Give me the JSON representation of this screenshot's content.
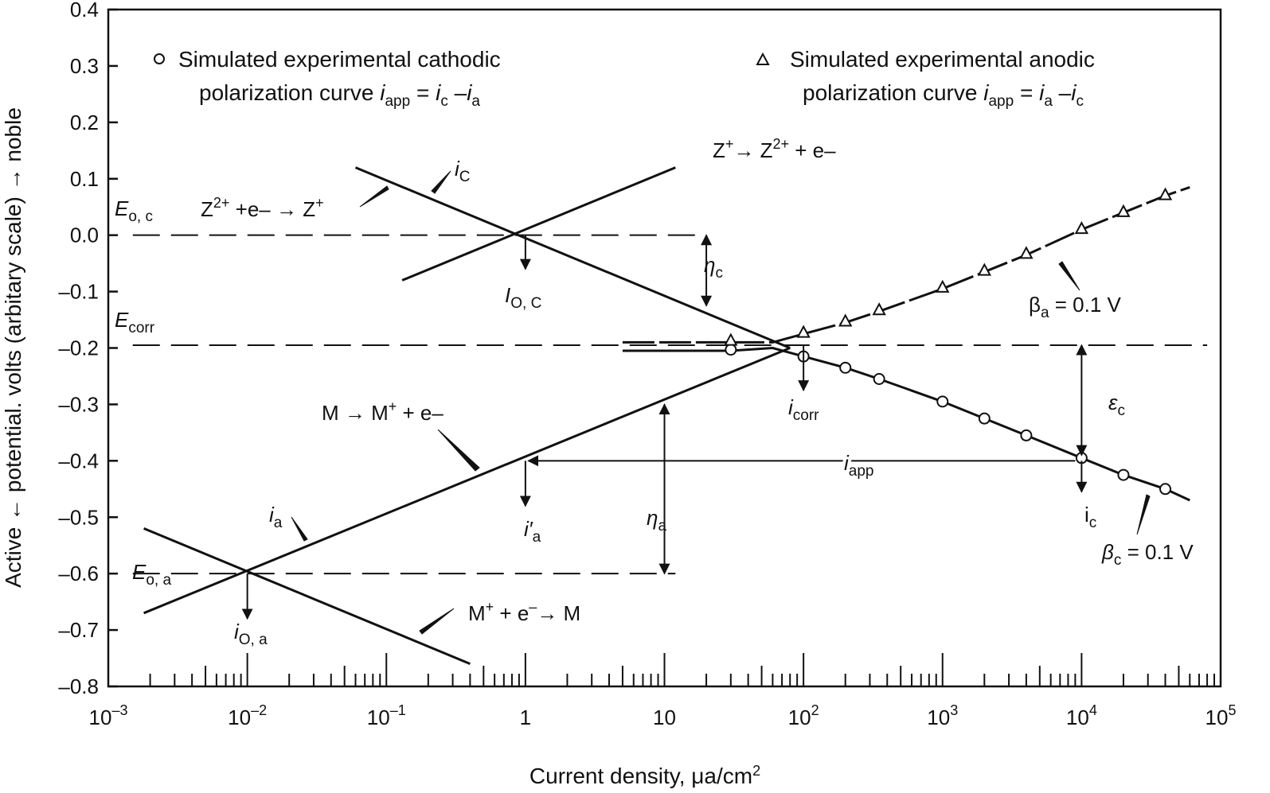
{
  "chart_data": {
    "type": "line",
    "x_scale": "log",
    "xlim": [
      0.001,
      100000
    ],
    "ylim": [
      -0.8,
      0.4
    ],
    "grid": false,
    "xlabel": "Current density, μa/cm",
    "xlabel_sup": "2",
    "ylabel": "Active ← potential. volts (arbitary scale) → noble",
    "y_ticks": [
      {
        "value": 0.4,
        "label": "0.4"
      },
      {
        "value": 0.3,
        "label": "0.3"
      },
      {
        "value": 0.2,
        "label": "0.2"
      },
      {
        "value": 0.1,
        "label": "0.1"
      },
      {
        "value": 0.0,
        "label": "0.0"
      },
      {
        "value": -0.1,
        "label": "–0.1"
      },
      {
        "value": -0.2,
        "label": "–0.2"
      },
      {
        "value": -0.3,
        "label": "–0.3"
      },
      {
        "value": -0.4,
        "label": "–0.4"
      },
      {
        "value": -0.5,
        "label": "–0.5"
      },
      {
        "value": -0.6,
        "label": "–0.6"
      },
      {
        "value": -0.7,
        "label": "–0.7"
      },
      {
        "value": -0.8,
        "label": "–0.8"
      }
    ],
    "x_ticks": [
      {
        "value": 0.001,
        "base": "10",
        "exp": "–3"
      },
      {
        "value": 0.01,
        "base": "10",
        "exp": "–2"
      },
      {
        "value": 0.1,
        "base": "10",
        "exp": "–1"
      },
      {
        "value": 1,
        "base": "1",
        "exp": ""
      },
      {
        "value": 10,
        "base": "10",
        "exp": ""
      },
      {
        "value": 100,
        "base": "10",
        "exp": "2"
      },
      {
        "value": 1000,
        "base": "10",
        "exp": "3"
      },
      {
        "value": 10000,
        "base": "10",
        "exp": "4"
      },
      {
        "value": 100000,
        "base": "10",
        "exp": "5"
      }
    ],
    "legend": [
      {
        "marker": "circle",
        "line1": "Simulated experimental cathodic",
        "line2_pre": "polarization curve ",
        "formula": "i_app = i_c – i_a"
      },
      {
        "marker": "triangle",
        "line1": "Simulated experimental anodic",
        "line2_pre": "polarization curve ",
        "formula": "i_app = i_a – i_c"
      }
    ],
    "series": [
      {
        "key": "z-oxidation",
        "points": [
          [
            0.13,
            -0.08
          ],
          [
            12,
            0.12
          ]
        ]
      },
      {
        "key": "z-reduction",
        "points": [
          [
            0.06,
            0.12
          ],
          [
            80,
            -0.2
          ]
        ]
      },
      {
        "key": "m-oxidation",
        "points": [
          [
            0.0018,
            -0.67
          ],
          [
            80,
            -0.2
          ]
        ]
      },
      {
        "key": "m-reduction",
        "points": [
          [
            0.0018,
            -0.52
          ],
          [
            0.4,
            -0.76
          ]
        ]
      },
      {
        "key": "cathodic-polarization",
        "marker": "circle",
        "points": [
          [
            5,
            -0.205
          ],
          [
            30,
            -0.205
          ],
          [
            60,
            -0.2
          ],
          [
            100,
            -0.215
          ],
          [
            200,
            -0.235
          ],
          [
            350,
            -0.255
          ],
          [
            1000,
            -0.295
          ],
          [
            2000,
            -0.325
          ],
          [
            4000,
            -0.355
          ],
          [
            10000,
            -0.395
          ],
          [
            20000,
            -0.425
          ],
          [
            40000,
            -0.45
          ],
          [
            60000,
            -0.47
          ]
        ]
      },
      {
        "key": "anodic-polarization",
        "marker": "triangle",
        "points": [
          [
            5,
            -0.19
          ],
          [
            30,
            -0.19
          ],
          [
            60,
            -0.19
          ],
          [
            100,
            -0.175
          ],
          [
            200,
            -0.155
          ],
          [
            350,
            -0.135
          ],
          [
            1000,
            -0.095
          ],
          [
            2000,
            -0.065
          ],
          [
            4000,
            -0.035
          ],
          [
            10000,
            0.01
          ],
          [
            20000,
            0.04
          ],
          [
            40000,
            0.07
          ],
          [
            60000,
            0.085
          ]
        ]
      }
    ],
    "cathodic_markers": [
      [
        30,
        -0.203
      ],
      [
        100,
        -0.215
      ],
      [
        200,
        -0.235
      ],
      [
        350,
        -0.255
      ],
      [
        1000,
        -0.295
      ],
      [
        2000,
        -0.325
      ],
      [
        4000,
        -0.355
      ],
      [
        10000,
        -0.395
      ],
      [
        20000,
        -0.425
      ],
      [
        40000,
        -0.45
      ]
    ],
    "anodic_markers": [
      [
        30,
        -0.186
      ],
      [
        100,
        -0.172
      ],
      [
        200,
        -0.152
      ],
      [
        350,
        -0.132
      ],
      [
        1000,
        -0.092
      ],
      [
        2000,
        -0.062
      ],
      [
        4000,
        -0.032
      ],
      [
        10000,
        0.012
      ],
      [
        20000,
        0.042
      ],
      [
        40000,
        0.072
      ]
    ],
    "reference_lines": [
      {
        "key": "E_oc",
        "y": 0.0,
        "x_range": [
          0.0015,
          20
        ]
      },
      {
        "key": "E_corr",
        "y": -0.195,
        "x_range": [
          0.0015,
          80000
        ]
      },
      {
        "key": "E_oa",
        "y": -0.6,
        "x_range": [
          0.0015,
          12
        ]
      }
    ],
    "annotations": {
      "e_oc": {
        "main": "E",
        "sub": "o, c"
      },
      "e_corr": {
        "main": "E",
        "sub": "corr"
      },
      "e_oa": {
        "main": "E",
        "sub": "o, a"
      },
      "z_red_reaction": "Z2+ + e– → Z+",
      "z_ox_reaction": "Z+ → Z2+ + e–",
      "m_ox_reaction": "M → M+ + e–",
      "m_red_reaction": "M+ + e– → M",
      "i_c_label": {
        "main": "i",
        "sub": "C"
      },
      "i_a_label": {
        "main": "i",
        "sub": "a"
      },
      "i_oc_label": {
        "main": "I",
        "sub": "O, C"
      },
      "i_oa_label": {
        "main": "i",
        "sub": "O, a"
      },
      "i_corr_label": {
        "main": "i",
        "sub": "corr"
      },
      "i_app_label": {
        "main": "i",
        "sub": "app"
      },
      "i_prime_a_label": {
        "main": "i′",
        "sub": "a"
      },
      "i_c_right_label": {
        "main": "i",
        "sub": "c"
      },
      "eta_c": {
        "main": "η",
        "sub": "c"
      },
      "eta_a": {
        "main": "η",
        "sub": "a"
      },
      "eps_c": {
        "main": "ε",
        "sub": "c"
      },
      "beta_a": {
        "main": "β",
        "sub": "a",
        "rest": " = 0.1 V"
      },
      "beta_c": {
        "main": "β",
        "sub": "c",
        "rest": " = 0.1 V"
      }
    }
  }
}
